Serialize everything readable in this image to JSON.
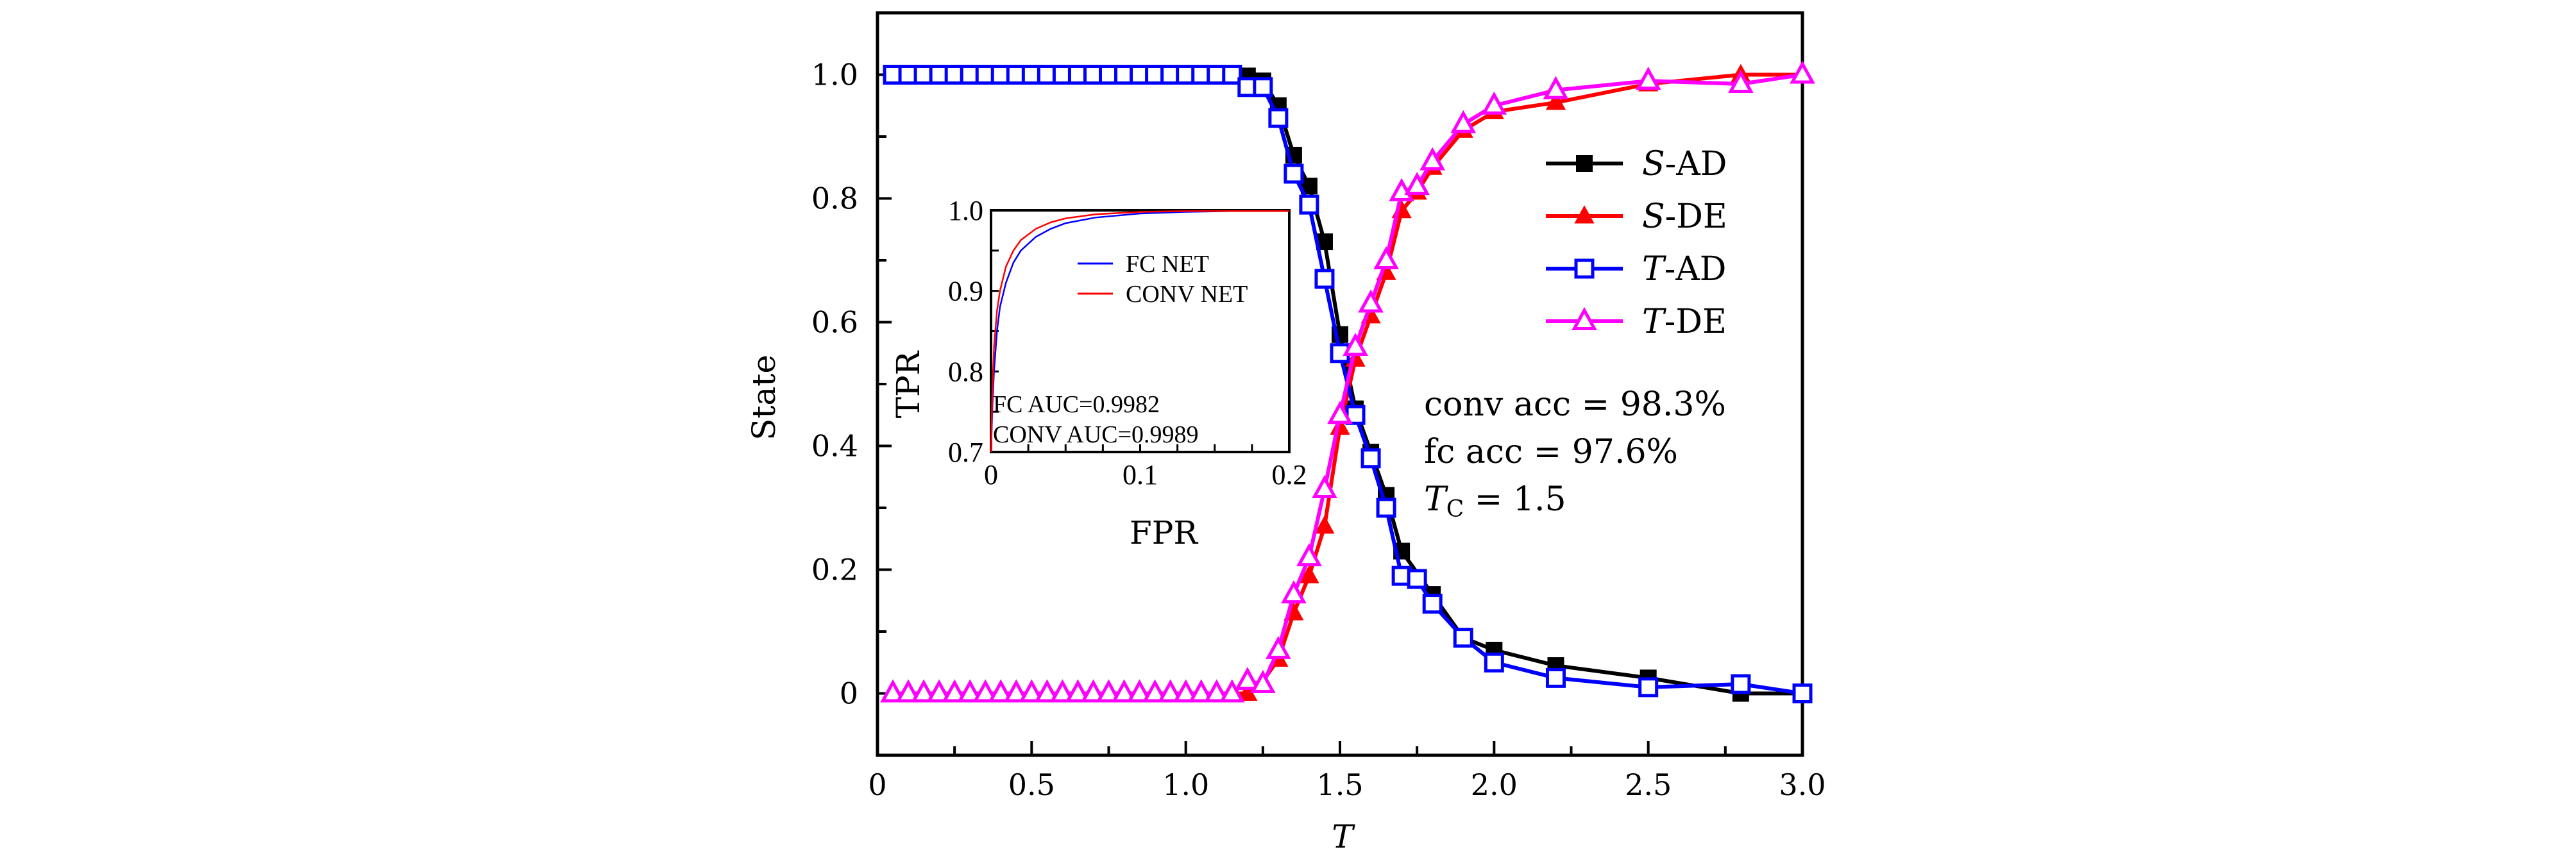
{
  "chart_data": [
    {
      "type": "line",
      "title": "",
      "xlabel": "T",
      "ylabel": "State",
      "xlim": [
        0,
        3.0
      ],
      "ylim": [
        -0.1,
        1.1
      ],
      "xticks": [
        0,
        0.5,
        1.0,
        1.5,
        2.0,
        2.5,
        3.0
      ],
      "xtick_labels": [
        "0",
        "0.5",
        "1.0",
        "1.5",
        "2.0",
        "2.5",
        "3.0"
      ],
      "yticks": [
        0,
        0.2,
        0.4,
        0.6,
        0.8,
        1.0
      ],
      "ytick_labels": [
        "0",
        "0.2",
        "0.4",
        "0.6",
        "0.8",
        "1.0"
      ],
      "grid": false,
      "legend_position": "right",
      "series": [
        {
          "name": "S-AD",
          "name_italic": "S",
          "name_rest": "-AD",
          "color": "#000000",
          "marker": "filled-square",
          "x": [
            0.05,
            0.1,
            0.15,
            0.2,
            0.25,
            0.3,
            0.35,
            0.4,
            0.45,
            0.5,
            0.55,
            0.6,
            0.65,
            0.7,
            0.75,
            0.8,
            0.85,
            0.9,
            0.95,
            1.0,
            1.05,
            1.1,
            1.15,
            1.2,
            1.25,
            1.3,
            1.35,
            1.4,
            1.45,
            1.5,
            1.55,
            1.6,
            1.65,
            1.7,
            1.8,
            1.9,
            2.0,
            2.2,
            2.5,
            2.8,
            3.0
          ],
          "y": [
            1,
            1,
            1,
            1,
            1,
            1,
            1,
            1,
            1,
            1,
            1,
            1,
            1,
            1,
            1,
            1,
            1,
            1,
            1,
            1,
            1,
            1,
            1,
            0.998,
            0.99,
            0.95,
            0.87,
            0.82,
            0.73,
            0.58,
            0.46,
            0.39,
            0.32,
            0.23,
            0.16,
            0.09,
            0.07,
            0.045,
            0.025,
            0.0,
            0.0
          ]
        },
        {
          "name": "S-DE",
          "name_italic": "S",
          "name_rest": "-DE",
          "color": "#ff0000",
          "marker": "filled-triangle",
          "x": [
            0.05,
            0.1,
            0.15,
            0.2,
            0.25,
            0.3,
            0.35,
            0.4,
            0.45,
            0.5,
            0.55,
            0.6,
            0.65,
            0.7,
            0.75,
            0.8,
            0.85,
            0.9,
            0.95,
            1.0,
            1.05,
            1.1,
            1.15,
            1.2,
            1.25,
            1.3,
            1.35,
            1.4,
            1.45,
            1.5,
            1.55,
            1.6,
            1.65,
            1.7,
            1.75,
            1.8,
            1.9,
            2.0,
            2.2,
            2.5,
            2.8,
            3.0
          ],
          "y": [
            0,
            0,
            0,
            0,
            0,
            0,
            0,
            0,
            0,
            0,
            0,
            0,
            0,
            0,
            0,
            0,
            0,
            0,
            0,
            0,
            0,
            0,
            0,
            0.0,
            0.02,
            0.055,
            0.13,
            0.19,
            0.27,
            0.43,
            0.54,
            0.61,
            0.68,
            0.78,
            0.81,
            0.85,
            0.91,
            0.94,
            0.955,
            0.985,
            1.0,
            1.0
          ]
        },
        {
          "name": "T-AD",
          "name_italic": "T",
          "name_rest": "-AD",
          "color": "#0000ff",
          "marker": "open-square",
          "x": [
            0.05,
            0.1,
            0.15,
            0.2,
            0.25,
            0.3,
            0.35,
            0.4,
            0.45,
            0.5,
            0.55,
            0.6,
            0.65,
            0.7,
            0.75,
            0.8,
            0.85,
            0.9,
            0.95,
            1.0,
            1.05,
            1.1,
            1.15,
            1.2,
            1.25,
            1.3,
            1.35,
            1.4,
            1.45,
            1.5,
            1.55,
            1.6,
            1.65,
            1.7,
            1.75,
            1.8,
            1.9,
            2.0,
            2.2,
            2.5,
            2.8,
            3.0
          ],
          "y": [
            1,
            1,
            1,
            1,
            1,
            1,
            1,
            1,
            1,
            1,
            1,
            1,
            1,
            1,
            1,
            1,
            1,
            1,
            1,
            1,
            1,
            1,
            1,
            0.98,
            0.98,
            0.93,
            0.84,
            0.79,
            0.67,
            0.55,
            0.45,
            0.38,
            0.3,
            0.19,
            0.185,
            0.145,
            0.09,
            0.05,
            0.025,
            0.01,
            0.015,
            0.0
          ]
        },
        {
          "name": "T-DE",
          "name_italic": "T",
          "name_rest": "-DE",
          "color": "#ff00ff",
          "marker": "open-triangle",
          "x": [
            0.05,
            0.1,
            0.15,
            0.2,
            0.25,
            0.3,
            0.35,
            0.4,
            0.45,
            0.5,
            0.55,
            0.6,
            0.65,
            0.7,
            0.75,
            0.8,
            0.85,
            0.9,
            0.95,
            1.0,
            1.05,
            1.1,
            1.15,
            1.2,
            1.25,
            1.3,
            1.35,
            1.4,
            1.45,
            1.5,
            1.55,
            1.6,
            1.65,
            1.7,
            1.75,
            1.8,
            1.9,
            2.0,
            2.2,
            2.5,
            2.8,
            3.0
          ],
          "y": [
            0,
            0,
            0,
            0,
            0,
            0,
            0,
            0,
            0,
            0,
            0,
            0,
            0,
            0,
            0,
            0,
            0,
            0,
            0,
            0,
            0,
            0,
            0,
            0.02,
            0.015,
            0.07,
            0.16,
            0.22,
            0.33,
            0.45,
            0.56,
            0.63,
            0.7,
            0.81,
            0.82,
            0.86,
            0.92,
            0.95,
            0.975,
            0.99,
            0.985,
            1.0
          ]
        }
      ],
      "annotations": [
        "conv acc = 98.3%",
        "fc acc = 97.6%",
        "T_C = 1.5"
      ]
    },
    {
      "type": "line",
      "title": "",
      "xlabel": "FPR",
      "ylabel": "TPR",
      "xlim": [
        0,
        0.2
      ],
      "ylim": [
        0.7,
        1.0
      ],
      "xticks": [
        0,
        0.1,
        0.2
      ],
      "xtick_labels": [
        "0",
        "0.1",
        "0.2"
      ],
      "yticks": [
        0.7,
        0.8,
        0.9,
        1.0
      ],
      "ytick_labels": [
        "0.7",
        "0.8",
        "0.9",
        "1.0"
      ],
      "grid": false,
      "legend_position": "top-right",
      "series": [
        {
          "name": "FC NET",
          "color": "#0000ff",
          "x": [
            0,
            0.001,
            0.002,
            0.004,
            0.006,
            0.01,
            0.015,
            0.02,
            0.03,
            0.04,
            0.05,
            0.07,
            0.1,
            0.13,
            0.16,
            0.2
          ],
          "y": [
            0.7,
            0.76,
            0.8,
            0.85,
            0.88,
            0.91,
            0.935,
            0.95,
            0.967,
            0.977,
            0.984,
            0.991,
            0.996,
            0.998,
            0.999,
            0.999
          ]
        },
        {
          "name": "CONV NET",
          "color": "#ff0000",
          "x": [
            0,
            0.001,
            0.002,
            0.004,
            0.006,
            0.01,
            0.015,
            0.02,
            0.03,
            0.04,
            0.05,
            0.07,
            0.1,
            0.13,
            0.16,
            0.2
          ],
          "y": [
            0.7,
            0.78,
            0.83,
            0.875,
            0.9,
            0.93,
            0.95,
            0.963,
            0.977,
            0.985,
            0.99,
            0.995,
            0.998,
            0.999,
            0.999,
            0.999
          ]
        }
      ],
      "annotations": [
        "FC AUC=0.9982",
        "CONV AUC=0.9989"
      ]
    }
  ],
  "main": {
    "xlabel": "T",
    "ylabel": "State",
    "annot_conv": "conv acc = 98.3%",
    "annot_fc": "fc acc = 97.6%",
    "annot_tc_main": "T",
    "annot_tc_sub": "C",
    "annot_tc_rest": " = 1.5"
  },
  "inset": {
    "xlabel": "FPR",
    "ylabel": "TPR",
    "fc_auc": "FC AUC=0.9982",
    "conv_auc": "CONV AUC=0.9989",
    "legend_fc": "FC NET",
    "legend_conv": "CONV NET"
  }
}
